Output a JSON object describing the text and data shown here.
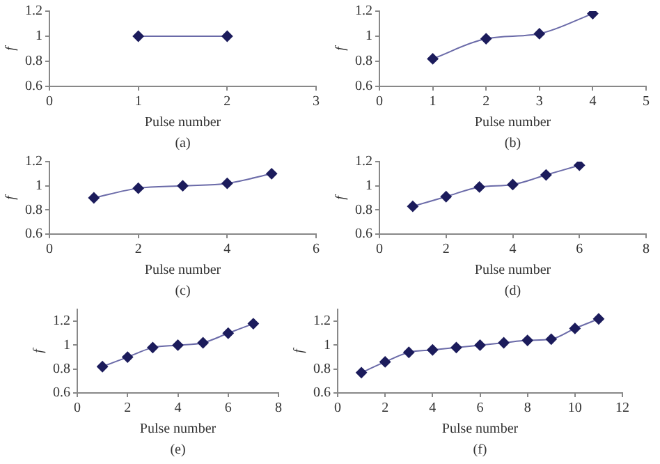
{
  "chart_data": [
    {
      "type": "line",
      "xlabel": "Pulse number",
      "ylabel": "f",
      "annotations": [
        "(a)"
      ],
      "x": [
        1,
        2
      ],
      "series": [
        {
          "color": "#1c1c5c",
          "values": [
            1,
            1
          ]
        }
      ],
      "xlim": [
        0,
        3
      ],
      "xticks": [
        0,
        1,
        2,
        3
      ],
      "ylim": [
        0.6,
        1.2
      ],
      "yticks": [
        0.6,
        0.8,
        1,
        1.2
      ],
      "marker": "diamond",
      "grid": false,
      "legend": false
    },
    {
      "type": "line",
      "xlabel": "Pulse number",
      "ylabel": "f",
      "annotations": [
        "(b)"
      ],
      "x": [
        1,
        2,
        3,
        4
      ],
      "series": [
        {
          "color": "#1c1c5c",
          "values": [
            0.82,
            0.98,
            1.02,
            1.18
          ]
        }
      ],
      "xlim": [
        0,
        5
      ],
      "xticks": [
        0,
        1,
        2,
        3,
        4,
        5
      ],
      "ylim": [
        0.6,
        1.2
      ],
      "yticks": [
        0.6,
        0.8,
        1,
        1.2
      ],
      "marker": "diamond",
      "grid": false,
      "legend": false
    },
    {
      "type": "line",
      "xlabel": "Pulse number",
      "ylabel": "f",
      "annotations": [
        "(c)"
      ],
      "x": [
        1,
        2,
        3,
        4,
        5
      ],
      "series": [
        {
          "color": "#1c1c5c",
          "values": [
            0.9,
            0.98,
            1.0,
            1.02,
            1.1
          ]
        }
      ],
      "xlim": [
        0,
        6
      ],
      "xticks": [
        0,
        2,
        4,
        6
      ],
      "ylim": [
        0.6,
        1.2
      ],
      "yticks": [
        0.6,
        0.8,
        1,
        1.2
      ],
      "marker": "diamond",
      "grid": false,
      "legend": false
    },
    {
      "type": "line",
      "xlabel": "Pulse number",
      "ylabel": "f",
      "annotations": [
        "(d)"
      ],
      "x": [
        1,
        2,
        3,
        4,
        5,
        6
      ],
      "series": [
        {
          "color": "#1c1c5c",
          "values": [
            0.83,
            0.91,
            0.99,
            1.01,
            1.09,
            1.17
          ]
        }
      ],
      "xlim": [
        0,
        8
      ],
      "xticks": [
        0,
        2,
        4,
        6,
        8
      ],
      "ylim": [
        0.6,
        1.2
      ],
      "yticks": [
        0.6,
        0.8,
        1,
        1.2
      ],
      "marker": "diamond",
      "grid": false,
      "legend": false
    },
    {
      "type": "line",
      "xlabel": "Pulse number",
      "ylabel": "f",
      "annotations": [
        "(e)"
      ],
      "x": [
        1,
        2,
        3,
        4,
        5,
        6,
        7
      ],
      "series": [
        {
          "color": "#1c1c5c",
          "values": [
            0.82,
            0.9,
            0.98,
            1.0,
            1.02,
            1.1,
            1.18
          ]
        }
      ],
      "xlim": [
        0,
        8
      ],
      "xticks": [
        0,
        2,
        4,
        6,
        8
      ],
      "ylim": [
        0.6,
        1.3
      ],
      "yticks": [
        0.6,
        0.8,
        1,
        1.2
      ],
      "marker": "diamond",
      "grid": false,
      "legend": false
    },
    {
      "type": "line",
      "xlabel": "Pulse number",
      "ylabel": "f",
      "annotations": [
        "(f)"
      ],
      "x": [
        1,
        2,
        3,
        4,
        5,
        6,
        7,
        8,
        9,
        10,
        11
      ],
      "series": [
        {
          "color": "#1c1c5c",
          "values": [
            0.77,
            0.86,
            0.94,
            0.96,
            0.98,
            1.0,
            1.02,
            1.04,
            1.05,
            1.14,
            1.22
          ]
        }
      ],
      "xlim": [
        0,
        12
      ],
      "xticks": [
        0,
        2,
        4,
        6,
        8,
        10,
        12
      ],
      "ylim": [
        0.6,
        1.3
      ],
      "yticks": [
        0.6,
        0.8,
        1,
        1.2
      ],
      "marker": "diamond",
      "grid": false,
      "legend": false
    }
  ]
}
